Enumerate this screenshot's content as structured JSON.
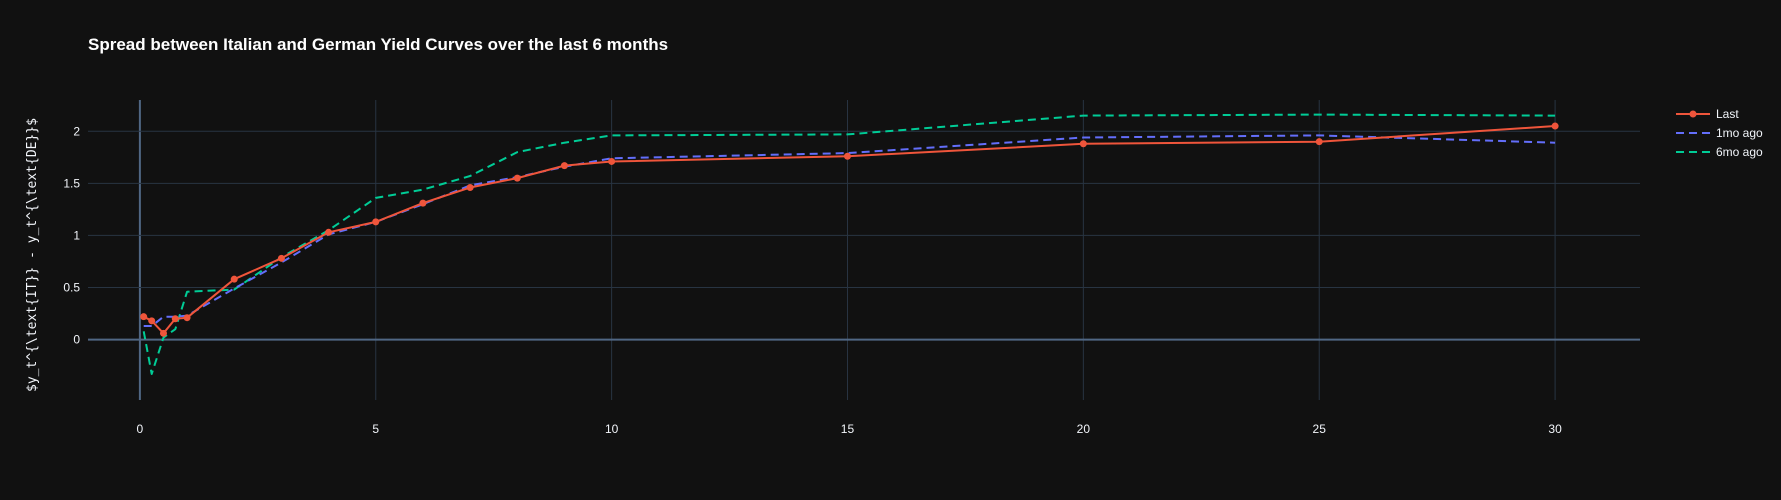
{
  "chart_data": {
    "type": "line",
    "title": "Spread between Italian and German Yield Curves over the last 6 months",
    "xlabel": "",
    "ylabel": "$y_t^{\\text{IT}} - y_t^{\\text{DE}}$",
    "xlim": [
      -1.1,
      31.8
    ],
    "ylim": [
      -0.58,
      2.3
    ],
    "xticks": [
      0,
      5,
      10,
      15,
      20,
      25,
      30
    ],
    "xtick_labels": [
      "0",
      "5",
      "10",
      "15",
      "20",
      "25",
      "30"
    ],
    "yticks": [
      0,
      0.5,
      1,
      1.5,
      2
    ],
    "ytick_labels": [
      "0",
      "0.5",
      "1",
      "1.5",
      "2"
    ],
    "grid": true,
    "legend_position": "top-right",
    "series": [
      {
        "name": "Last",
        "color": "#EF553B",
        "style": "solid",
        "markers": true,
        "x": [
          0.08,
          0.25,
          0.5,
          0.75,
          1,
          2,
          3,
          4,
          5,
          6,
          7,
          8,
          9,
          10,
          15,
          20,
          25,
          30
        ],
        "y": [
          0.22,
          0.18,
          0.06,
          0.2,
          0.21,
          0.58,
          0.78,
          1.03,
          1.13,
          1.31,
          1.46,
          1.55,
          1.67,
          1.71,
          1.76,
          1.88,
          1.9,
          2.05
        ]
      },
      {
        "name": "1mo ago",
        "color": "#636EFA",
        "style": "dash",
        "markers": false,
        "x": [
          0.08,
          0.25,
          0.5,
          0.75,
          1,
          2,
          3,
          4,
          5,
          6,
          7,
          8,
          9,
          10,
          15,
          20,
          25,
          30
        ],
        "y": [
          0.13,
          0.13,
          0.22,
          0.22,
          0.23,
          0.49,
          0.74,
          1.01,
          1.13,
          1.3,
          1.48,
          1.56,
          1.66,
          1.74,
          1.79,
          1.94,
          1.96,
          1.89
        ]
      },
      {
        "name": "6mo ago",
        "color": "#00CC96",
        "style": "dash",
        "markers": false,
        "x": [
          0.08,
          0.25,
          0.5,
          0.75,
          1,
          2,
          3,
          4,
          5,
          6,
          7,
          8,
          9,
          10,
          15,
          20,
          25,
          30
        ],
        "y": [
          0.08,
          -0.33,
          0.02,
          0.1,
          0.46,
          0.48,
          0.79,
          1.05,
          1.36,
          1.44,
          1.57,
          1.8,
          1.89,
          1.96,
          1.97,
          2.15,
          2.16,
          2.15
        ]
      }
    ]
  },
  "colors": {
    "background": "#111111",
    "grid": "#283442",
    "zeroline": "#506784",
    "text": "#f2f5fa",
    "title": "#ffffff"
  }
}
